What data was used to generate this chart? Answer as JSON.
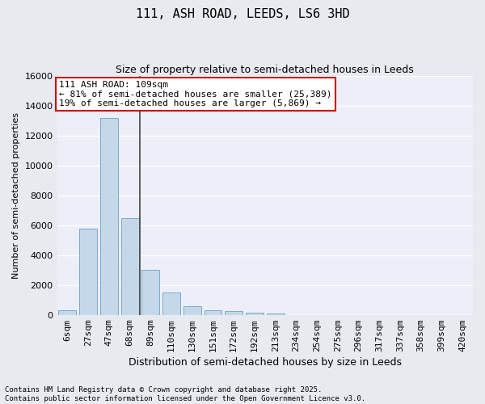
{
  "title_line1": "111, ASH ROAD, LEEDS, LS6 3HD",
  "title_line2": "Size of property relative to semi-detached houses in Leeds",
  "xlabel": "Distribution of semi-detached houses by size in Leeds",
  "ylabel": "Number of semi-detached properties",
  "categories": [
    "6sqm",
    "27sqm",
    "47sqm",
    "68sqm",
    "89sqm",
    "110sqm",
    "130sqm",
    "151sqm",
    "172sqm",
    "192sqm",
    "213sqm",
    "234sqm",
    "254sqm",
    "275sqm",
    "296sqm",
    "317sqm",
    "337sqm",
    "358sqm",
    "399sqm",
    "420sqm"
  ],
  "bar_heights": [
    300,
    5800,
    13200,
    6500,
    3000,
    1500,
    600,
    300,
    250,
    130,
    80,
    0,
    0,
    0,
    0,
    0,
    0,
    0,
    0,
    0
  ],
  "vline_index": 4,
  "bar_color": "#c5d8ea",
  "bar_edge_color": "#7aaac8",
  "vline_color": "#444444",
  "annotation_text": "111 ASH ROAD: 109sqm\n← 81% of semi-detached houses are smaller (25,389)\n19% of semi-detached houses are larger (5,869) →",
  "annotation_box_facecolor": "#ffffff",
  "annotation_box_edgecolor": "#cc0000",
  "footnote_line1": "Contains HM Land Registry data © Crown copyright and database right 2025.",
  "footnote_line2": "Contains public sector information licensed under the Open Government Licence v3.0.",
  "ylim": [
    0,
    16000
  ],
  "yticks": [
    0,
    2000,
    4000,
    6000,
    8000,
    10000,
    12000,
    14000,
    16000
  ],
  "background_color": "#e8eaf0",
  "plot_bg_color": "#eceef8",
  "grid_color": "#ffffff",
  "title_fontsize": 11,
  "subtitle_fontsize": 9,
  "xlabel_fontsize": 9,
  "ylabel_fontsize": 8,
  "tick_fontsize": 8,
  "annot_fontsize": 8,
  "footnote_fontsize": 6.5
}
